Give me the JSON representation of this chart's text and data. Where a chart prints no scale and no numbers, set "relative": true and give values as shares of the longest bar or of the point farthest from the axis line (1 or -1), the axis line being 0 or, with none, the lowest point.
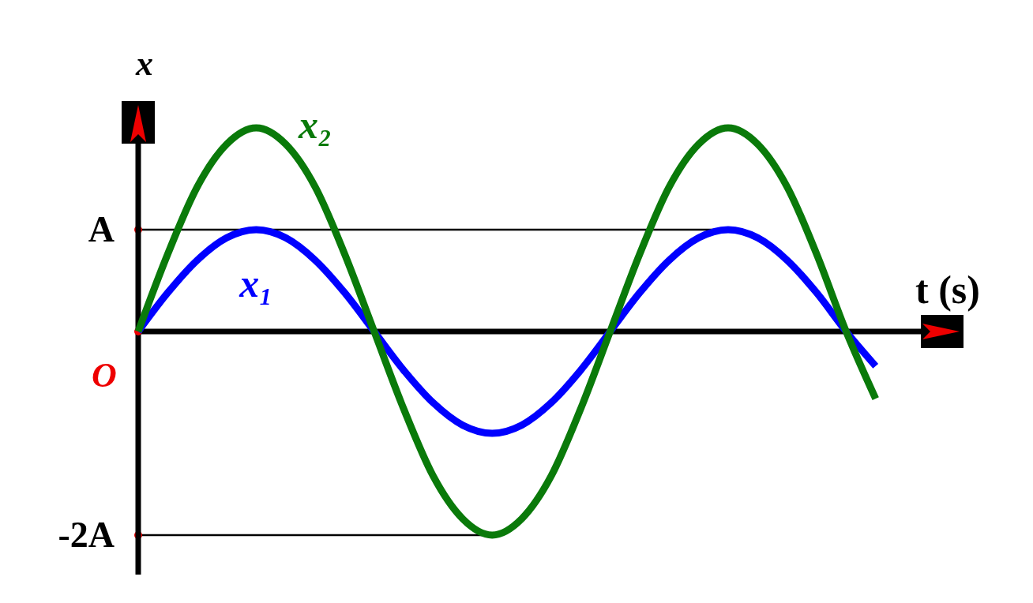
{
  "chart_data": {
    "type": "line",
    "xlabel": "t (s)",
    "ylabel": "x",
    "relative": true,
    "categories": [
      null,
      null,
      null,
      null,
      null,
      null,
      null,
      null,
      null,
      null,
      null,
      null,
      null,
      null,
      null,
      null,
      null,
      null,
      null,
      null,
      null,
      null,
      null,
      null,
      null,
      null
    ],
    "series": [
      {
        "name": "x₁",
        "color": "#0000ff",
        "values": [
          0,
          0.19,
          0.35,
          0.46,
          0.5,
          0.46,
          0.35,
          0.19,
          0,
          -0.19,
          -0.35,
          -0.46,
          -0.5,
          -0.46,
          -0.35,
          -0.19,
          0,
          0.19,
          0.35,
          0.46,
          0.5,
          0.46,
          0.35,
          0.19,
          0,
          -0.17
        ]
      },
      {
        "name": "x₂",
        "color": "#0a7a0a",
        "values": [
          0,
          0.38,
          0.71,
          0.92,
          1,
          0.92,
          0.71,
          0.38,
          0,
          -0.38,
          -0.71,
          -0.92,
          -1,
          -0.92,
          -0.71,
          -0.38,
          0,
          0.38,
          0.71,
          0.92,
          1,
          0.92,
          0.71,
          0.38,
          0,
          -0.33
        ]
      }
    ],
    "ref_lines": [
      {
        "axis": "y",
        "value": 0.5,
        "label": "A",
        "color": "#000000"
      },
      {
        "axis": "y",
        "value": -1,
        "label": "-2A",
        "color": "#000000"
      }
    ],
    "annotations": [
      "O"
    ],
    "marker": "none",
    "line_style": "solid"
  }
}
